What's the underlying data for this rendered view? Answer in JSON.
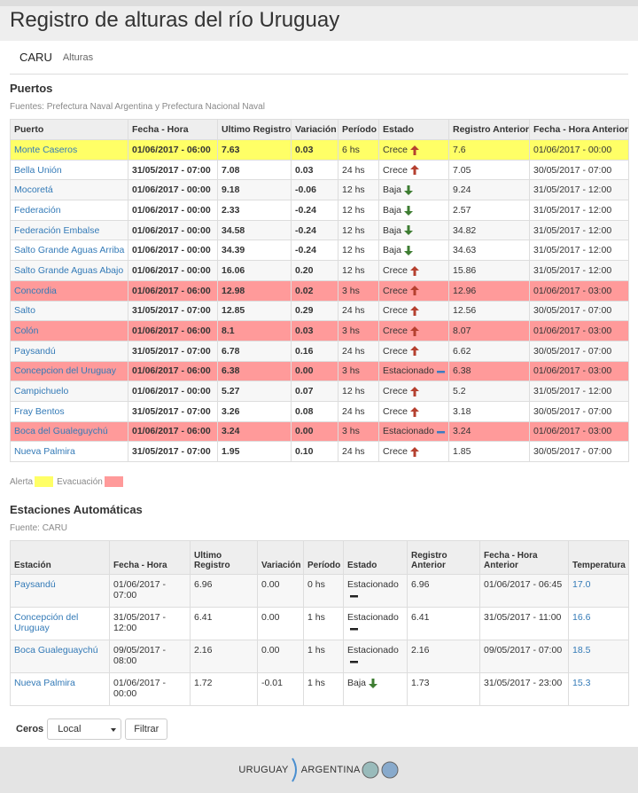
{
  "header": {
    "title": "Registro de alturas del río Uruguay"
  },
  "nav": [
    "CARU",
    "Alturas"
  ],
  "ports": {
    "title": "Puertos",
    "source": "Fuentes: Prefectura Naval Argentina y Prefectura Nacional Naval",
    "columns": [
      "Puerto",
      "Fecha - Hora",
      "Ultimo Registro",
      "Variación",
      "Período",
      "Estado",
      "Registro Anterior",
      "Fecha - Hora Anterior"
    ],
    "rows": [
      {
        "cells": [
          "Monte Caseros",
          "01/06/2017 - 06:00",
          "7.63",
          "0.03",
          "6 hs",
          "Crece",
          "7.6",
          "01/06/2017 - 00:00"
        ],
        "trend": "up",
        "color": "#ffff66"
      },
      {
        "cells": [
          "Bella Unión",
          "31/05/2017 - 07:00",
          "7.08",
          "0.03",
          "24 hs",
          "Crece",
          "7.05",
          "30/05/2017 - 07:00"
        ],
        "trend": "up"
      },
      {
        "cells": [
          "Mocoretá",
          "01/06/2017 - 00:00",
          "9.18",
          "-0.06",
          "12 hs",
          "Baja",
          "9.24",
          "31/05/2017 - 12:00"
        ],
        "trend": "down"
      },
      {
        "cells": [
          "Federación",
          "01/06/2017 - 00:00",
          "2.33",
          "-0.24",
          "12 hs",
          "Baja",
          "2.57",
          "31/05/2017 - 12:00"
        ],
        "trend": "down"
      },
      {
        "cells": [
          "Federación Embalse",
          "01/06/2017 - 00:00",
          "34.58",
          "-0.24",
          "12 hs",
          "Baja",
          "34.82",
          "31/05/2017 - 12:00"
        ],
        "trend": "down"
      },
      {
        "cells": [
          "Salto Grande Aguas Arriba",
          "01/06/2017 - 00:00",
          "34.39",
          "-0.24",
          "12 hs",
          "Baja",
          "34.63",
          "31/05/2017 - 12:00"
        ],
        "trend": "down"
      },
      {
        "cells": [
          "Salto Grande Aguas Abajo",
          "01/06/2017 - 00:00",
          "16.06",
          "0.20",
          "12 hs",
          "Crece",
          "15.86",
          "31/05/2017 - 12:00"
        ],
        "trend": "up"
      },
      {
        "cells": [
          "Concordia",
          "01/06/2017 - 06:00",
          "12.98",
          "0.02",
          "3 hs",
          "Crece",
          "12.96",
          "01/06/2017 - 03:00"
        ],
        "trend": "up",
        "color": "#ff9a9a"
      },
      {
        "cells": [
          "Salto",
          "31/05/2017 - 07:00",
          "12.85",
          "0.29",
          "24 hs",
          "Crece",
          "12.56",
          "30/05/2017 - 07:00"
        ],
        "trend": "up"
      },
      {
        "cells": [
          "Colón",
          "01/06/2017 - 06:00",
          "8.1",
          "0.03",
          "3 hs",
          "Crece",
          "8.07",
          "01/06/2017 - 03:00"
        ],
        "trend": "up",
        "color": "#ff9a9a"
      },
      {
        "cells": [
          "Paysandú",
          "31/05/2017 - 07:00",
          "6.78",
          "0.16",
          "24 hs",
          "Crece",
          "6.62",
          "30/05/2017 - 07:00"
        ],
        "trend": "up"
      },
      {
        "cells": [
          "Concepcion del Uruguay",
          "01/06/2017 - 06:00",
          "6.38",
          "0.00",
          "3 hs",
          "Estacionado",
          "6.38",
          "01/06/2017 - 03:00"
        ],
        "trend": "flat",
        "color": "#ff9a9a"
      },
      {
        "cells": [
          "Campichuelo",
          "01/06/2017 - 00:00",
          "5.27",
          "0.07",
          "12 hs",
          "Crece",
          "5.2",
          "31/05/2017 - 12:00"
        ],
        "trend": "up"
      },
      {
        "cells": [
          "Fray Bentos",
          "31/05/2017 - 07:00",
          "3.26",
          "0.08",
          "24 hs",
          "Crece",
          "3.18",
          "30/05/2017 - 07:00"
        ],
        "trend": "up"
      },
      {
        "cells": [
          "Boca del Gualeguychú",
          "01/06/2017 - 06:00",
          "3.24",
          "0.00",
          "3 hs",
          "Estacionado",
          "3.24",
          "01/06/2017 - 03:00"
        ],
        "trend": "flat",
        "color": "#ff9a9a"
      },
      {
        "cells": [
          "Nueva Palmira",
          "31/05/2017 - 07:00",
          "1.95",
          "0.10",
          "24 hs",
          "Crece",
          "1.85",
          "30/05/2017 - 07:00"
        ],
        "trend": "up"
      }
    ],
    "legend": [
      {
        "label": "Alerta",
        "color": "#ffff66"
      },
      {
        "label": "Evacuación",
        "color": "#ff9a9a"
      }
    ]
  },
  "stations": {
    "title": "Estaciones Automáticas",
    "source": "Fuente: CARU",
    "columns": [
      "Estación",
      "Fecha - Hora",
      "Ultimo Registro",
      "Variación",
      "Período",
      "Estado",
      "Registro Anterior",
      "Fecha - Hora Anterior",
      "Temperatura"
    ],
    "rows": [
      {
        "cells": [
          "Paysandú",
          "01/06/2017 - 07:00",
          "6.96",
          "0.00",
          "0 hs",
          "Estacionado",
          "6.96",
          "01/06/2017 - 06:45",
          "17.0"
        ],
        "trend": "flat"
      },
      {
        "cells": [
          "Concepción del Uruguay",
          "31/05/2017 - 12:00",
          "6.41",
          "0.00",
          "1 hs",
          "Estacionado",
          "6.41",
          "31/05/2017 - 11:00",
          "16.6"
        ],
        "trend": "flat"
      },
      {
        "cells": [
          "Boca Gualeguaychú",
          "09/05/2017 - 08:00",
          "2.16",
          "0.00",
          "1 hs",
          "Estacionado",
          "2.16",
          "09/05/2017 - 07:00",
          "18.5"
        ],
        "trend": "flat"
      },
      {
        "cells": [
          "Nueva Palmira",
          "01/06/2017 - 00:00",
          "1.72",
          "-0.01",
          "1 hs",
          "Baja",
          "1.73",
          "31/05/2017 - 23:00",
          "15.3"
        ],
        "trend": "down"
      }
    ]
  },
  "filter": {
    "label": "Ceros",
    "select": "Local",
    "button": "Filtrar"
  },
  "footer": {
    "logo": [
      "URUGUAY",
      "ARGENTINA"
    ]
  }
}
